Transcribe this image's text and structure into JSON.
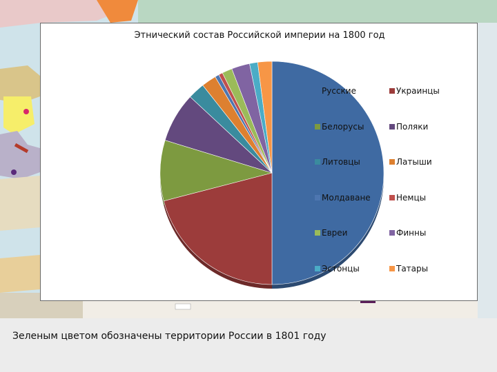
{
  "chart_data": {
    "type": "pie",
    "title": "Этнический состав Российской империи на 1800 год",
    "categories": [
      "Русские",
      "Украинцы",
      "Белорусы",
      "Поляки",
      "Литовцы",
      "Латыши",
      "Молдаване",
      "Немцы",
      "Евреи",
      "Финны",
      "Эстонцы",
      "Татары"
    ],
    "values": [
      51.3,
      21.5,
      9.0,
      7.4,
      2.5,
      2.2,
      0.6,
      0.6,
      1.5,
      2.7,
      1.2,
      2.1
    ],
    "unit": "",
    "colors": [
      "#3f6aa2",
      "#9c3c3b",
      "#7d9a40",
      "#63497e",
      "#3a8b9e",
      "#dd8030",
      "#4d76b0",
      "#c0504d",
      "#9bbb59",
      "#8064a2",
      "#4bacc6",
      "#f79646"
    ],
    "legend": "right"
  },
  "caption": "Зеленым цветом обозначены территории России в 1801 году"
}
